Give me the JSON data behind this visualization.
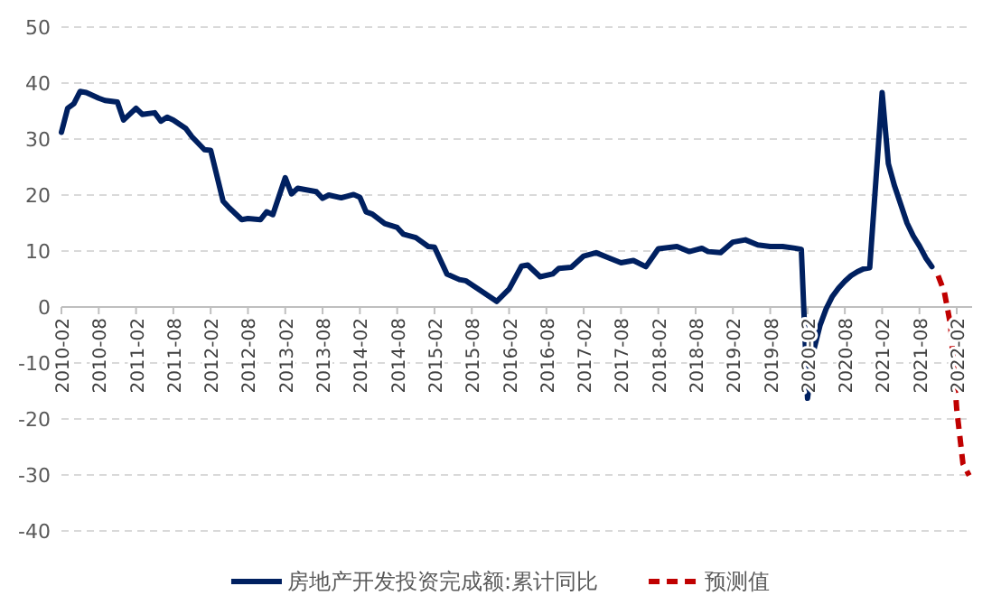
{
  "chart_data": {
    "type": "line",
    "legend": "bottom",
    "grid": "y",
    "ylim": [
      -40,
      50
    ],
    "yticks": [
      -40,
      -30,
      -20,
      -10,
      0,
      10,
      20,
      30,
      40,
      50
    ],
    "xlim": [
      "2010-02",
      "2022-04-15"
    ],
    "xticks": [
      "2010-02",
      "2010-08",
      "2011-02",
      "2011-08",
      "2012-02",
      "2012-08",
      "2013-02",
      "2013-08",
      "2014-02",
      "2014-08",
      "2015-02",
      "2015-08",
      "2016-02",
      "2016-08",
      "2017-02",
      "2017-08",
      "2018-02",
      "2018-08",
      "2019-02",
      "2019-08",
      "2020-02",
      "2020-08",
      "2021-02",
      "2021-08",
      "2022-02"
    ],
    "series": [
      {
        "name": "房地产开发投资完成额:累计同比",
        "color": "#002060",
        "line_style": "solid",
        "x": [
          "2010-02",
          "2010-03",
          "2010-04",
          "2010-05",
          "2010-06",
          "2010-08",
          "2010-09",
          "2010-11",
          "2010-12",
          "2011-02",
          "2011-03",
          "2011-05",
          "2011-06",
          "2011-07",
          "2011-08",
          "2011-10",
          "2011-11",
          "2012-01",
          "2012-02",
          "2012-04",
          "2012-05",
          "2012-07",
          "2012-08",
          "2012-10",
          "2012-11",
          "2012-12",
          "2013-02",
          "2013-03",
          "2013-04",
          "2013-06",
          "2013-07",
          "2013-08",
          "2013-09",
          "2013-11",
          "2014-01",
          "2014-02",
          "2014-03",
          "2014-04",
          "2014-06",
          "2014-08",
          "2014-09",
          "2014-11",
          "2015-01",
          "2015-02",
          "2015-04",
          "2015-06",
          "2015-07",
          "2015-10",
          "2015-12",
          "2016-02",
          "2016-04",
          "2016-05",
          "2016-07",
          "2016-09",
          "2016-10",
          "2016-12",
          "2017-02",
          "2017-04",
          "2017-06",
          "2017-08",
          "2017-10",
          "2017-12",
          "2018-02",
          "2018-05",
          "2018-07",
          "2018-09",
          "2018-10",
          "2018-12",
          "2019-02",
          "2019-04",
          "2019-06",
          "2019-08",
          "2019-10",
          "2019-12",
          "2020-01",
          "2020-02",
          "2020-03",
          "2020-04",
          "2020-05",
          "2020-06",
          "2020-07",
          "2020-08",
          "2020-09",
          "2020-10",
          "2020-11",
          "2020-12",
          "2021-02",
          "2021-03",
          "2021-04",
          "2021-05",
          "2021-06",
          "2021-07",
          "2021-08",
          "2021-09",
          "2021-10"
        ],
        "values": [
          31.2,
          35.5,
          36.3,
          38.5,
          38.3,
          37.3,
          36.9,
          36.6,
          33.4,
          35.5,
          34.4,
          34.7,
          33.2,
          33.9,
          33.4,
          31.9,
          30.4,
          28.1,
          28.0,
          18.9,
          17.7,
          15.6,
          15.8,
          15.6,
          17.0,
          16.5,
          23.1,
          20.2,
          21.2,
          20.8,
          20.6,
          19.4,
          20.0,
          19.5,
          20.1,
          19.6,
          17.0,
          16.6,
          14.9,
          14.2,
          13.0,
          12.4,
          10.8,
          10.7,
          5.9,
          4.9,
          4.7,
          2.5,
          1.0,
          3.2,
          7.3,
          7.5,
          5.4,
          5.9,
          6.9,
          7.1,
          9.1,
          9.7,
          8.8,
          7.9,
          8.3,
          7.2,
          10.4,
          10.8,
          9.9,
          10.5,
          9.9,
          9.7,
          11.6,
          12.0,
          11.1,
          10.8,
          10.8,
          10.5,
          10.3,
          -16.3,
          -7.7,
          -3.3,
          -0.3,
          1.9,
          3.4,
          4.6,
          5.6,
          6.3,
          6.8,
          7.0,
          38.3,
          25.6,
          21.6,
          18.3,
          15.0,
          12.7,
          10.9,
          8.8,
          7.2
        ]
      },
      {
        "name": "预测值",
        "color": "#c00000",
        "line_style": "dashed",
        "x": [
          "2021-11",
          "2021-12",
          "2022-01",
          "2022-02",
          "2022-03",
          "2022-04"
        ],
        "values": [
          5.6,
          2.7,
          -3.2,
          -18.3,
          -28.0,
          -30.1
        ]
      }
    ]
  }
}
